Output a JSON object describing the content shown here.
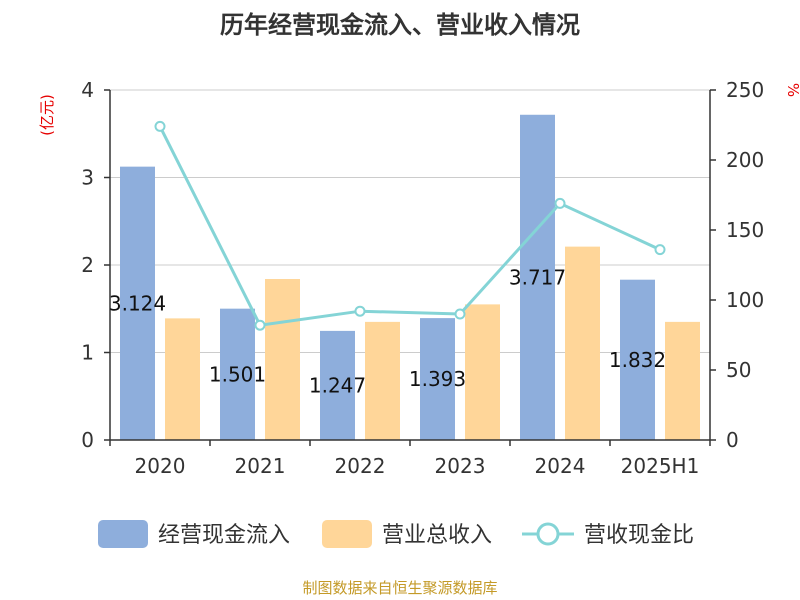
{
  "chart_data": {
    "type": "bar+line",
    "title": "历年经营现金流入、营业收入情况",
    "categories": [
      "2020",
      "2021",
      "2022",
      "2023",
      "2024",
      "2025H1"
    ],
    "series": [
      {
        "name": "经营现金流入",
        "type": "bar",
        "axis": "left",
        "values": [
          3.124,
          1.501,
          1.247,
          1.393,
          3.717,
          1.832
        ],
        "labels": [
          "3.124",
          "1.501",
          "1.247",
          "1.393",
          "3.717",
          "1.832"
        ]
      },
      {
        "name": "营业总收入",
        "type": "bar",
        "axis": "left",
        "values": [
          1.39,
          1.84,
          1.35,
          1.55,
          2.21,
          1.35
        ]
      },
      {
        "name": "营收现金比",
        "type": "line",
        "axis": "right",
        "values": [
          224,
          82,
          92,
          90,
          169,
          136
        ]
      }
    ],
    "y_left": {
      "label": "(亿元)",
      "min": 0,
      "max": 4,
      "ticks": [
        0,
        1,
        2,
        3,
        4
      ]
    },
    "y_right": {
      "label": "%",
      "min": 0,
      "max": 250,
      "ticks": [
        0,
        50,
        100,
        150,
        200,
        250
      ]
    },
    "grid": true,
    "legend_position": "bottom"
  },
  "colors": {
    "cash_inflow": "#8EAEDC",
    "revenue": "#FFD699",
    "ratio_line": "#84D4D6",
    "axis_label_red": "#E60000",
    "source": "#C49A27"
  },
  "source_note": "制图数据来自恒生聚源数据库"
}
